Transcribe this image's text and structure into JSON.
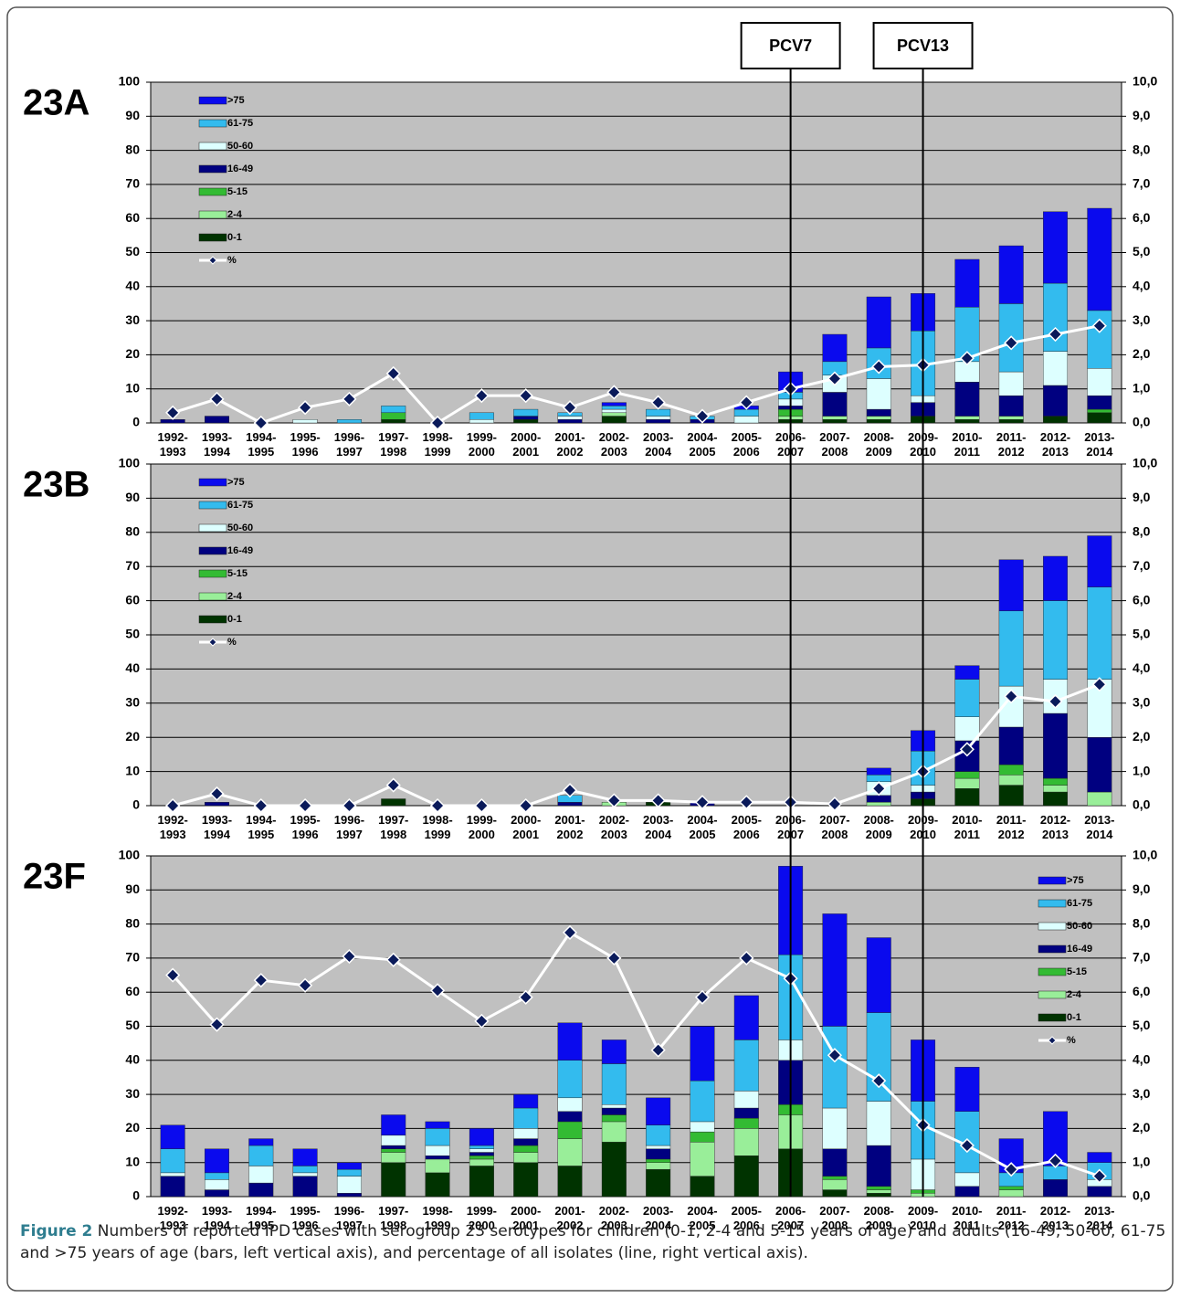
{
  "chart_data": [
    {
      "type": "bar",
      "stacked": true,
      "title": "23A",
      "legend": "top-left",
      "grid": true,
      "categories": [
        "1992-1993",
        "1993-1994",
        "1994-1995",
        "1995-1996",
        "1996-1997",
        "1997-1998",
        "1998-1999",
        "1999-2000",
        "2000-2001",
        "2001-2002",
        "2002-2003",
        "2003-2004",
        "2004-2005",
        "2005-2006",
        "2006-2007",
        "2007-2008",
        "2008-2009",
        "2009-2010",
        "2010-2011",
        "2011-2012",
        "2012-2013",
        "2013-2014"
      ],
      "ylim": [
        0,
        100
      ],
      "yticks": [
        0,
        10,
        20,
        30,
        40,
        50,
        60,
        70,
        80,
        90,
        100
      ],
      "y2lim": [
        0,
        10
      ],
      "y2ticks": [
        {
          "value": 0,
          "label": "0,0"
        },
        {
          "value": 1,
          "label": "1,0"
        },
        {
          "value": 2,
          "label": "2,0"
        },
        {
          "value": 3,
          "label": "3,0"
        },
        {
          "value": 4,
          "label": "4,0"
        },
        {
          "value": 5,
          "label": "5,0"
        },
        {
          "value": 6,
          "label": "6,0"
        },
        {
          "value": 7,
          "label": "7,0"
        },
        {
          "value": 8,
          "label": "8,0"
        },
        {
          "value": 9,
          "label": "9,0"
        },
        {
          "value": 10,
          "label": "10,0"
        }
      ],
      "series": [
        {
          "name": "0-1",
          "color": "#003300",
          "values": [
            0,
            0,
            0,
            0,
            0,
            1,
            0,
            0,
            1,
            0,
            2,
            0,
            0,
            0,
            1,
            1,
            1,
            2,
            1,
            1,
            2,
            3
          ]
        },
        {
          "name": "2-4",
          "color": "#99ee99",
          "values": [
            0,
            0,
            0,
            0,
            0,
            0,
            0,
            0,
            0,
            0,
            1,
            0,
            0,
            0,
            1,
            1,
            1,
            0,
            1,
            1,
            0,
            0
          ]
        },
        {
          "name": "5-15",
          "color": "#33bb33",
          "values": [
            0,
            0,
            0,
            0,
            0,
            2,
            0,
            0,
            0,
            0,
            0,
            0,
            0,
            0,
            2,
            0,
            0,
            0,
            0,
            0,
            0,
            1
          ]
        },
        {
          "name": "16-49",
          "color": "#000080",
          "values": [
            1,
            2,
            0,
            0,
            0,
            0,
            0,
            0,
            1,
            1,
            0,
            1,
            1,
            0,
            1,
            7,
            2,
            4,
            10,
            6,
            9,
            4
          ]
        },
        {
          "name": "50-60",
          "color": "#ddffff",
          "values": [
            0,
            0,
            0,
            1,
            0,
            0,
            0,
            1,
            0,
            1,
            1,
            1,
            0,
            2,
            2,
            5,
            9,
            2,
            6,
            7,
            10,
            8
          ]
        },
        {
          "name": "61-75",
          "color": "#33bbee",
          "values": [
            0,
            0,
            0,
            0,
            1,
            2,
            0,
            2,
            2,
            1,
            1,
            2,
            1,
            2,
            2,
            4,
            9,
            19,
            16,
            20,
            20,
            17
          ]
        },
        {
          "name": ">75",
          "color": "#0a0aee",
          "values": [
            0,
            0,
            0,
            0,
            0,
            0,
            0,
            0,
            0,
            0,
            1,
            0,
            0,
            1,
            6,
            8,
            15,
            11,
            14,
            17,
            21,
            30
          ]
        },
        {
          "name": "%",
          "type": "line",
          "axis": "y2",
          "color": "#ffffff",
          "marker_color": "#0a1a5a",
          "values": [
            0.3,
            0.7,
            0.0,
            0.45,
            0.7,
            1.45,
            0.0,
            0.8,
            0.8,
            0.45,
            0.9,
            0.6,
            0.2,
            0.6,
            1.0,
            1.3,
            1.65,
            1.7,
            1.9,
            2.35,
            2.6,
            2.85
          ]
        }
      ]
    },
    {
      "type": "bar",
      "stacked": true,
      "title": "23B",
      "legend": "top-left",
      "grid": true,
      "categories": [
        "1992-1993",
        "1993-1994",
        "1994-1995",
        "1995-1996",
        "1996-1997",
        "1997-1998",
        "1998-1999",
        "1999-2000",
        "2000-2001",
        "2001-2002",
        "2002-2003",
        "2003-2004",
        "2004-2005",
        "2005-2006",
        "2006-2007",
        "2007-2008",
        "2008-2009",
        "2009-2010",
        "2010-2011",
        "2011-2012",
        "2012-2013",
        "2013-2014"
      ],
      "ylim": [
        0,
        100
      ],
      "yticks": [
        0,
        10,
        20,
        30,
        40,
        50,
        60,
        70,
        80,
        90,
        100
      ],
      "y2lim": [
        0,
        10
      ],
      "y2ticks": [
        {
          "value": 0,
          "label": "0,0"
        },
        {
          "value": 1,
          "label": "1,0"
        },
        {
          "value": 2,
          "label": "2,0"
        },
        {
          "value": 3,
          "label": "3,0"
        },
        {
          "value": 4,
          "label": "4,0"
        },
        {
          "value": 5,
          "label": "5,0"
        },
        {
          "value": 6,
          "label": "6,0"
        },
        {
          "value": 7,
          "label": "7,0"
        },
        {
          "value": 8,
          "label": "8,0"
        },
        {
          "value": 9,
          "label": "9,0"
        },
        {
          "value": 10,
          "label": "10,0"
        }
      ],
      "series": [
        {
          "name": "0-1",
          "color": "#003300",
          "values": [
            0,
            0,
            0,
            0,
            0,
            2,
            0,
            0,
            0,
            0,
            0,
            1,
            0,
            0,
            0,
            0,
            0,
            2,
            5,
            6,
            4,
            0
          ]
        },
        {
          "name": "2-4",
          "color": "#99ee99",
          "values": [
            0,
            0,
            0,
            0,
            0,
            0,
            0,
            0,
            0,
            0,
            1,
            0,
            0,
            0,
            0,
            0,
            1,
            0,
            3,
            3,
            2,
            4
          ]
        },
        {
          "name": "5-15",
          "color": "#33bb33",
          "values": [
            0,
            0,
            0,
            0,
            0,
            0,
            0,
            0,
            0,
            0,
            0,
            0,
            0,
            0,
            0,
            0,
            0,
            0,
            2,
            3,
            2,
            0
          ]
        },
        {
          "name": "16-49",
          "color": "#000080",
          "values": [
            0,
            1,
            0,
            0,
            0,
            0,
            0,
            0,
            0,
            1,
            0,
            0,
            1,
            0,
            0,
            0,
            2,
            2,
            9,
            11,
            19,
            16
          ]
        },
        {
          "name": "50-60",
          "color": "#ddffff",
          "values": [
            0,
            0,
            0,
            0,
            0,
            0,
            0,
            0,
            0,
            0,
            0,
            0,
            0,
            0,
            0,
            0,
            4,
            2,
            7,
            12,
            10,
            17
          ]
        },
        {
          "name": "61-75",
          "color": "#33bbee",
          "values": [
            0,
            0,
            0,
            0,
            0,
            0,
            0,
            0,
            0,
            2,
            0,
            0,
            0,
            0,
            0,
            0,
            2,
            10,
            11,
            22,
            23,
            27
          ]
        },
        {
          "name": ">75",
          "color": "#0a0aee",
          "values": [
            0,
            0,
            0,
            0,
            0,
            0,
            0,
            0,
            0,
            0,
            0,
            0,
            0,
            0,
            0,
            0,
            2,
            6,
            4,
            15,
            13,
            15
          ]
        },
        {
          "name": "%",
          "type": "line",
          "axis": "y2",
          "color": "#ffffff",
          "marker_color": "#0a1a5a",
          "values": [
            0.0,
            0.35,
            0.0,
            0.0,
            0.0,
            0.6,
            0.0,
            0.0,
            0.0,
            0.45,
            0.15,
            0.15,
            0.1,
            0.1,
            0.1,
            0.05,
            0.5,
            1.0,
            1.65,
            3.2,
            3.05,
            3.55
          ]
        }
      ]
    },
    {
      "type": "bar",
      "stacked": true,
      "title": "23F",
      "legend": "top-right",
      "grid": true,
      "categories": [
        "1992-1993",
        "1993-1994",
        "1994-1995",
        "1995-1996",
        "1996-1997",
        "1997-1998",
        "1998-1999",
        "1999-2000",
        "2000-2001",
        "2001-2002",
        "2002-2003",
        "2003-2004",
        "2004-2005",
        "2005-2006",
        "2006-2007",
        "2007-2008",
        "2008-2009",
        "2009-2010",
        "2010-2011",
        "2011-2012",
        "2012-2013",
        "2013-2014"
      ],
      "ylim": [
        0,
        100
      ],
      "yticks": [
        0,
        10,
        20,
        30,
        40,
        50,
        60,
        70,
        80,
        90,
        100
      ],
      "y2lim": [
        0,
        10
      ],
      "y2ticks": [
        {
          "value": 0,
          "label": "0,0"
        },
        {
          "value": 1,
          "label": "1,0"
        },
        {
          "value": 2,
          "label": "2,0"
        },
        {
          "value": 3,
          "label": "3,0"
        },
        {
          "value": 4,
          "label": "4,0"
        },
        {
          "value": 5,
          "label": "5,0"
        },
        {
          "value": 6,
          "label": "6,0"
        },
        {
          "value": 7,
          "label": "7,0"
        },
        {
          "value": 8,
          "label": "8,0"
        },
        {
          "value": 9,
          "label": "9,0"
        },
        {
          "value": 10,
          "label": "10,0"
        }
      ],
      "series": [
        {
          "name": "0-1",
          "color": "#003300",
          "values": [
            0,
            0,
            0,
            0,
            0,
            10,
            7,
            9,
            10,
            9,
            16,
            8,
            6,
            12,
            14,
            2,
            1,
            0,
            0,
            0,
            0,
            0
          ]
        },
        {
          "name": "2-4",
          "color": "#99ee99",
          "values": [
            0,
            0,
            0,
            0,
            0,
            3,
            4,
            2,
            3,
            8,
            6,
            2,
            10,
            8,
            10,
            3,
            1,
            1,
            0,
            2,
            0,
            0
          ]
        },
        {
          "name": "5-15",
          "color": "#33bb33",
          "values": [
            0,
            0,
            0,
            0,
            0,
            1,
            0,
            1,
            2,
            5,
            2,
            1,
            3,
            3,
            3,
            1,
            1,
            1,
            0,
            1,
            0,
            0
          ]
        },
        {
          "name": "16-49",
          "color": "#000080",
          "values": [
            6,
            2,
            4,
            6,
            1,
            1,
            1,
            1,
            2,
            3,
            2,
            3,
            0,
            3,
            13,
            8,
            12,
            0,
            3,
            0,
            5,
            3
          ]
        },
        {
          "name": "50-60",
          "color": "#ddffff",
          "values": [
            1,
            3,
            5,
            1,
            5,
            3,
            3,
            1,
            3,
            4,
            1,
            1,
            3,
            5,
            6,
            12,
            13,
            9,
            4,
            0,
            0,
            2
          ]
        },
        {
          "name": "61-75",
          "color": "#33bbee",
          "values": [
            7,
            2,
            6,
            2,
            2,
            0,
            5,
            1,
            6,
            11,
            12,
            6,
            12,
            15,
            25,
            24,
            26,
            17,
            18,
            4,
            4,
            5
          ]
        },
        {
          "name": ">75",
          "color": "#0a0aee",
          "values": [
            7,
            7,
            2,
            5,
            2,
            6,
            2,
            5,
            4,
            11,
            7,
            8,
            16,
            13,
            26,
            33,
            22,
            18,
            13,
            10,
            16,
            3
          ]
        },
        {
          "name": "%",
          "type": "line",
          "axis": "y2",
          "color": "#ffffff",
          "marker_color": "#0a1a5a",
          "values": [
            6.5,
            5.05,
            6.35,
            6.2,
            7.05,
            6.95,
            6.05,
            5.15,
            5.85,
            7.75,
            7.0,
            4.3,
            5.85,
            7.0,
            6.4,
            4.15,
            3.4,
            2.1,
            1.5,
            0.8,
            1.05,
            0.6
          ]
        }
      ]
    }
  ],
  "annotations": [
    {
      "text": "PCV7",
      "category": "2006-2007"
    },
    {
      "text": "PCV13",
      "category": "2009-2010"
    }
  ],
  "caption": {
    "label": "Figure 2",
    "text": "Numbers of reported IPD cases with serogroup 23 serotypes for children (0-1, 2-4 and 5-15 years of age) and adults (16-49, 50-60, 61-75 and >75 years of age (bars, left vertical axis), and percentage of all isolates (line, right vertical axis)."
  }
}
